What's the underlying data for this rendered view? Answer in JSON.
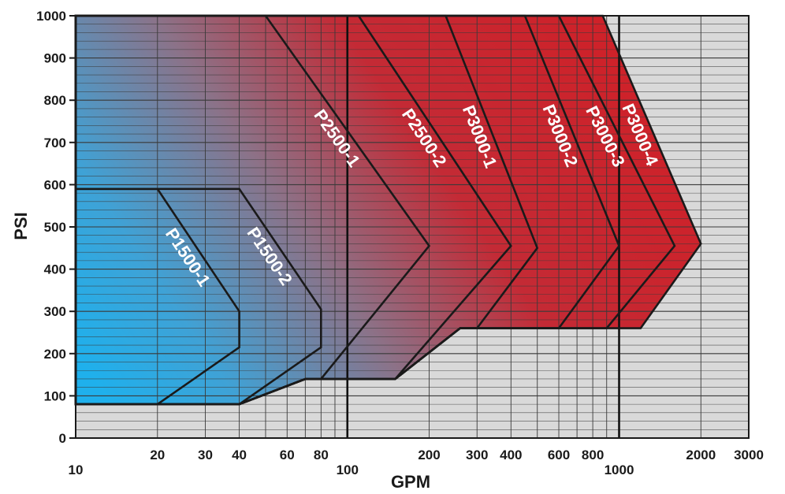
{
  "chart_data": {
    "type": "area",
    "title": "",
    "xlabel": "GPM",
    "ylabel": "PSI",
    "x_scale": "log",
    "xlim": [
      10,
      3000
    ],
    "ylim": [
      0,
      1000
    ],
    "grid": true,
    "x_ticks_upper": [
      20,
      30,
      40,
      60,
      80,
      200,
      300,
      400,
      600,
      800,
      2000,
      3000
    ],
    "x_ticks_lower": [
      10,
      100,
      1000
    ],
    "x_tick_labels_upper": [
      "20",
      "30",
      "40",
      "60",
      "80",
      "200",
      "300",
      "400",
      "600",
      "800",
      "2000",
      "3000"
    ],
    "x_tick_labels_lower": [
      "10",
      "100",
      "1000"
    ],
    "y_ticks": [
      0,
      100,
      200,
      300,
      400,
      500,
      600,
      700,
      800,
      900,
      1000
    ],
    "y_tick_labels": [
      "0",
      "100",
      "200",
      "300",
      "400",
      "500",
      "600",
      "700",
      "800",
      "900",
      "1000"
    ],
    "colors": {
      "high_pressure": "#d11f26",
      "low_pressure": "#1fb0ec",
      "mid_blend": "#8c7288",
      "background": "#d9d9d9",
      "grid": "#3a3a3a",
      "outline": "#1a1a1a",
      "label_text": "#ffffff"
    },
    "series": [
      {
        "name": "P1500-1",
        "polygon": [
          [
            10,
            80
          ],
          [
            10,
            590
          ],
          [
            20,
            590
          ],
          [
            40,
            300
          ],
          [
            40,
            215
          ],
          [
            20,
            80
          ]
        ]
      },
      {
        "name": "P1500-2",
        "polygon": [
          [
            10,
            80
          ],
          [
            10,
            590
          ],
          [
            40,
            590
          ],
          [
            80,
            305
          ],
          [
            80,
            215
          ],
          [
            40,
            80
          ]
        ]
      },
      {
        "name": "P2500-1",
        "polygon": [
          [
            10,
            80
          ],
          [
            10,
            1000
          ],
          [
            50,
            1000
          ],
          [
            200,
            455
          ],
          [
            80,
            140
          ],
          [
            70,
            140
          ],
          [
            40,
            80
          ]
        ]
      },
      {
        "name": "P2500-2",
        "polygon": [
          [
            10,
            80
          ],
          [
            10,
            1000
          ],
          [
            110,
            1000
          ],
          [
            400,
            455
          ],
          [
            150,
            140
          ],
          [
            70,
            140
          ],
          [
            40,
            80
          ]
        ]
      },
      {
        "name": "P3000-1",
        "polygon": [
          [
            10,
            80
          ],
          [
            10,
            1000
          ],
          [
            230,
            1000
          ],
          [
            500,
            450
          ],
          [
            300,
            260
          ],
          [
            260,
            260
          ],
          [
            150,
            140
          ],
          [
            70,
            140
          ],
          [
            40,
            80
          ]
        ]
      },
      {
        "name": "P3000-2",
        "polygon": [
          [
            10,
            80
          ],
          [
            10,
            1000
          ],
          [
            450,
            1000
          ],
          [
            1000,
            455
          ],
          [
            600,
            260
          ],
          [
            260,
            260
          ],
          [
            150,
            140
          ],
          [
            70,
            140
          ],
          [
            40,
            80
          ]
        ]
      },
      {
        "name": "P3000-3",
        "polygon": [
          [
            10,
            80
          ],
          [
            10,
            1000
          ],
          [
            600,
            1000
          ],
          [
            1600,
            455
          ],
          [
            900,
            260
          ],
          [
            260,
            260
          ],
          [
            150,
            140
          ],
          [
            70,
            140
          ],
          [
            40,
            80
          ]
        ]
      },
      {
        "name": "P3000-4",
        "polygon": [
          [
            10,
            80
          ],
          [
            10,
            1000
          ],
          [
            870,
            1000
          ],
          [
            2000,
            460
          ],
          [
            1200,
            260
          ],
          [
            260,
            260
          ],
          [
            150,
            140
          ],
          [
            70,
            140
          ],
          [
            40,
            80
          ]
        ]
      }
    ]
  }
}
